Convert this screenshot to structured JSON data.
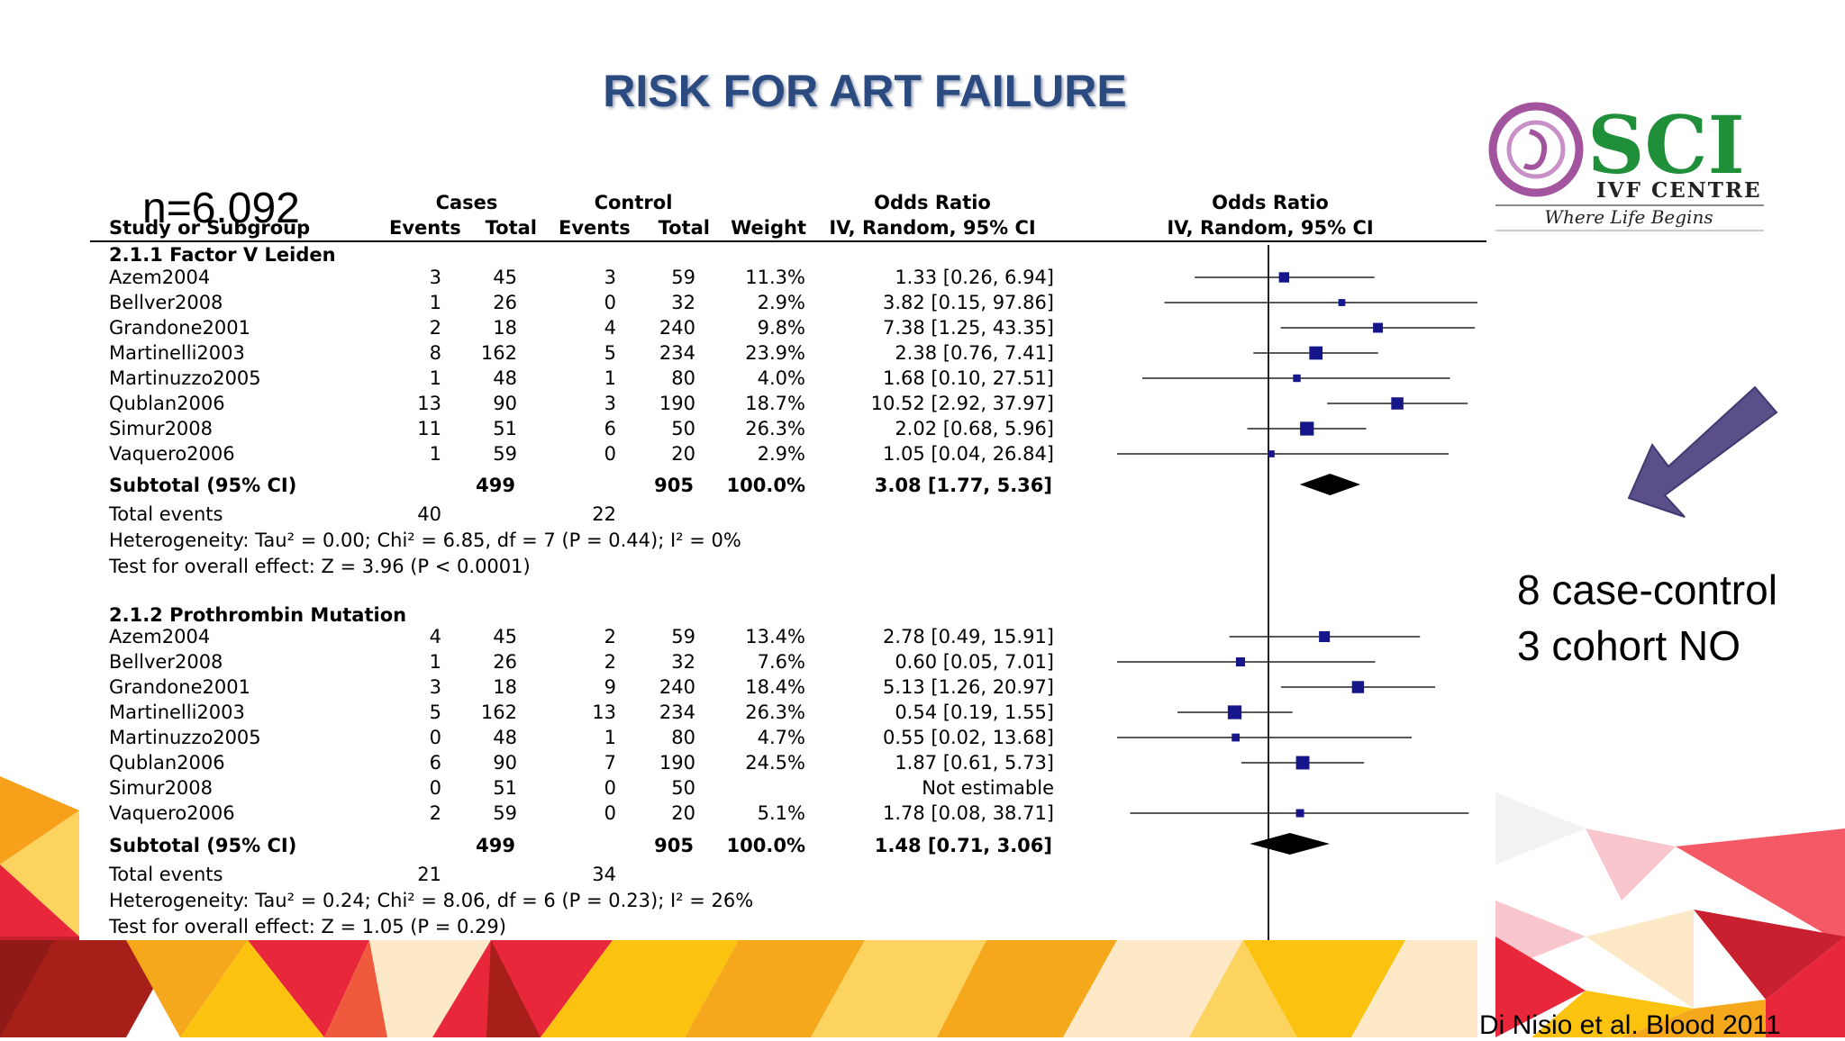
{
  "slide": {
    "title": "RISK FOR ART FAILURE",
    "sample_size": "n=6.092",
    "note_line1": "8 case-control",
    "note_line2": "3 cohort NO",
    "citation": "Di Nisio et al. Blood 2011",
    "colors": {
      "title": "#2a4a80",
      "arrow": "#5b4f8a",
      "marker": "#16168a",
      "deco_orange": "#f7a11a",
      "deco_red": "#e8283a",
      "deco_yellow": "#fbc20f"
    }
  },
  "logo": {
    "name": "SCI",
    "subtitle": "IVF CENTRE",
    "tagline": "Where Life Begins",
    "icon": "pregnancy-swirl-icon",
    "colors": {
      "text": "#1f8f3a",
      "swirl": "#a2559e"
    }
  },
  "table": {
    "header": {
      "study": "Study or Subgroup",
      "cases": "Cases",
      "control": "Control",
      "events1": "Events",
      "total1": "Total",
      "events2": "Events",
      "total2": "Total",
      "weight": "Weight",
      "or_col": "Odds Ratio",
      "or_method": "IV, Random, 95% CI",
      "plot_col": "Odds Ratio",
      "plot_method": "IV, Random, 95% CI"
    },
    "groups": [
      {
        "title": "2.1.1 Factor V Leiden",
        "rows": [
          {
            "study": "Azem2004",
            "ce": "3",
            "ct": "45",
            "ke": "3",
            "kt": "59",
            "weight": "11.3%",
            "ci": "1.33 [0.26, 6.94]"
          },
          {
            "study": "Bellver2008",
            "ce": "1",
            "ct": "26",
            "ke": "0",
            "kt": "32",
            "weight": "2.9%",
            "ci": "3.82 [0.15, 97.86]"
          },
          {
            "study": "Grandone2001",
            "ce": "2",
            "ct": "18",
            "ke": "4",
            "kt": "240",
            "weight": "9.8%",
            "ci": "7.38 [1.25, 43.35]"
          },
          {
            "study": "Martinelli2003",
            "ce": "8",
            "ct": "162",
            "ke": "5",
            "kt": "234",
            "weight": "23.9%",
            "ci": "2.38 [0.76, 7.41]"
          },
          {
            "study": "Martinuzzo2005",
            "ce": "1",
            "ct": "48",
            "ke": "1",
            "kt": "80",
            "weight": "4.0%",
            "ci": "1.68 [0.10, 27.51]"
          },
          {
            "study": "Qublan2006",
            "ce": "13",
            "ct": "90",
            "ke": "3",
            "kt": "190",
            "weight": "18.7%",
            "ci": "10.52 [2.92, 37.97]"
          },
          {
            "study": "Simur2008",
            "ce": "11",
            "ct": "51",
            "ke": "6",
            "kt": "50",
            "weight": "26.3%",
            "ci": "2.02 [0.68, 5.96]"
          },
          {
            "study": "Vaquero2006",
            "ce": "1",
            "ct": "59",
            "ke": "0",
            "kt": "20",
            "weight": "2.9%",
            "ci": "1.05 [0.04, 26.84]"
          }
        ],
        "subtotal": {
          "label": "Subtotal (95% CI)",
          "ct": "499",
          "kt": "905",
          "weight": "100.0%",
          "ci": "3.08 [1.77, 5.36]"
        },
        "total_events": {
          "label": "Total events",
          "cases": "40",
          "control": "22"
        },
        "heterogeneity": "Heterogeneity: Tau² = 0.00; Chi² = 6.85, df = 7 (P = 0.44); I² = 0%",
        "overall": "Test for overall effect: Z = 3.96 (P < 0.0001)"
      },
      {
        "title": "2.1.2 Prothrombin Mutation",
        "rows": [
          {
            "study": "Azem2004",
            "ce": "4",
            "ct": "45",
            "ke": "2",
            "kt": "59",
            "weight": "13.4%",
            "ci": "2.78 [0.49, 15.91]"
          },
          {
            "study": "Bellver2008",
            "ce": "1",
            "ct": "26",
            "ke": "2",
            "kt": "32",
            "weight": "7.6%",
            "ci": "0.60 [0.05, 7.01]"
          },
          {
            "study": "Grandone2001",
            "ce": "3",
            "ct": "18",
            "ke": "9",
            "kt": "240",
            "weight": "18.4%",
            "ci": "5.13 [1.26, 20.97]"
          },
          {
            "study": "Martinelli2003",
            "ce": "5",
            "ct": "162",
            "ke": "13",
            "kt": "234",
            "weight": "26.3%",
            "ci": "0.54 [0.19, 1.55]"
          },
          {
            "study": "Martinuzzo2005",
            "ce": "0",
            "ct": "48",
            "ke": "1",
            "kt": "80",
            "weight": "4.7%",
            "ci": "0.55 [0.02, 13.68]"
          },
          {
            "study": "Qublan2006",
            "ce": "6",
            "ct": "90",
            "ke": "7",
            "kt": "190",
            "weight": "24.5%",
            "ci": "1.87 [0.61, 5.73]"
          },
          {
            "study": "Simur2008",
            "ce": "0",
            "ct": "51",
            "ke": "0",
            "kt": "50",
            "weight": "",
            "ci": "Not estimable"
          },
          {
            "study": "Vaquero2006",
            "ce": "2",
            "ct": "59",
            "ke": "0",
            "kt": "20",
            "weight": "5.1%",
            "ci": "1.78 [0.08, 38.71]"
          }
        ],
        "subtotal": {
          "label": "Subtotal (95% CI)",
          "ct": "499",
          "kt": "905",
          "weight": "100.0%",
          "ci": "1.48 [0.71, 3.06]"
        },
        "total_events": {
          "label": "Total events",
          "cases": "21",
          "control": "34"
        },
        "heterogeneity": "Heterogeneity: Tau² = 0.24; Chi² = 8.06, df = 6 (P = 0.23); I² = 26%",
        "overall": "Test for overall effect: Z = 1.05 (P = 0.29)"
      }
    ]
  },
  "chart_data": {
    "type": "forest",
    "xscale": "log",
    "reference_line": 1,
    "groups": [
      {
        "name": "2.1.1 Factor V Leiden",
        "studies": [
          {
            "study": "Azem2004",
            "or": 1.33,
            "lo": 0.26,
            "hi": 6.94,
            "weight": 11.3
          },
          {
            "study": "Bellver2008",
            "or": 3.82,
            "lo": 0.15,
            "hi": 97.86,
            "weight": 2.9
          },
          {
            "study": "Grandone2001",
            "or": 7.38,
            "lo": 1.25,
            "hi": 43.35,
            "weight": 9.8
          },
          {
            "study": "Martinelli2003",
            "or": 2.38,
            "lo": 0.76,
            "hi": 7.41,
            "weight": 23.9
          },
          {
            "study": "Martinuzzo2005",
            "or": 1.68,
            "lo": 0.1,
            "hi": 27.51,
            "weight": 4.0
          },
          {
            "study": "Qublan2006",
            "or": 10.52,
            "lo": 2.92,
            "hi": 37.97,
            "weight": 18.7
          },
          {
            "study": "Simur2008",
            "or": 2.02,
            "lo": 0.68,
            "hi": 5.96,
            "weight": 26.3
          },
          {
            "study": "Vaquero2006",
            "or": 1.05,
            "lo": 0.04,
            "hi": 26.84,
            "weight": 2.9
          }
        ],
        "subtotal": {
          "or": 3.08,
          "lo": 1.77,
          "hi": 5.36
        }
      },
      {
        "name": "2.1.2 Prothrombin Mutation",
        "studies": [
          {
            "study": "Azem2004",
            "or": 2.78,
            "lo": 0.49,
            "hi": 15.91,
            "weight": 13.4
          },
          {
            "study": "Bellver2008",
            "or": 0.6,
            "lo": 0.05,
            "hi": 7.01,
            "weight": 7.6
          },
          {
            "study": "Grandone2001",
            "or": 5.13,
            "lo": 1.26,
            "hi": 20.97,
            "weight": 18.4
          },
          {
            "study": "Martinelli2003",
            "or": 0.54,
            "lo": 0.19,
            "hi": 1.55,
            "weight": 26.3
          },
          {
            "study": "Martinuzzo2005",
            "or": 0.55,
            "lo": 0.02,
            "hi": 13.68,
            "weight": 4.7
          },
          {
            "study": "Qublan2006",
            "or": 1.87,
            "lo": 0.61,
            "hi": 5.73,
            "weight": 24.5
          },
          {
            "study": "Simur2008",
            "or": null,
            "lo": null,
            "hi": null,
            "weight": null
          },
          {
            "study": "Vaquero2006",
            "or": 1.78,
            "lo": 0.08,
            "hi": 38.71,
            "weight": 5.1
          }
        ],
        "subtotal": {
          "or": 1.48,
          "lo": 0.71,
          "hi": 3.06
        }
      }
    ]
  }
}
